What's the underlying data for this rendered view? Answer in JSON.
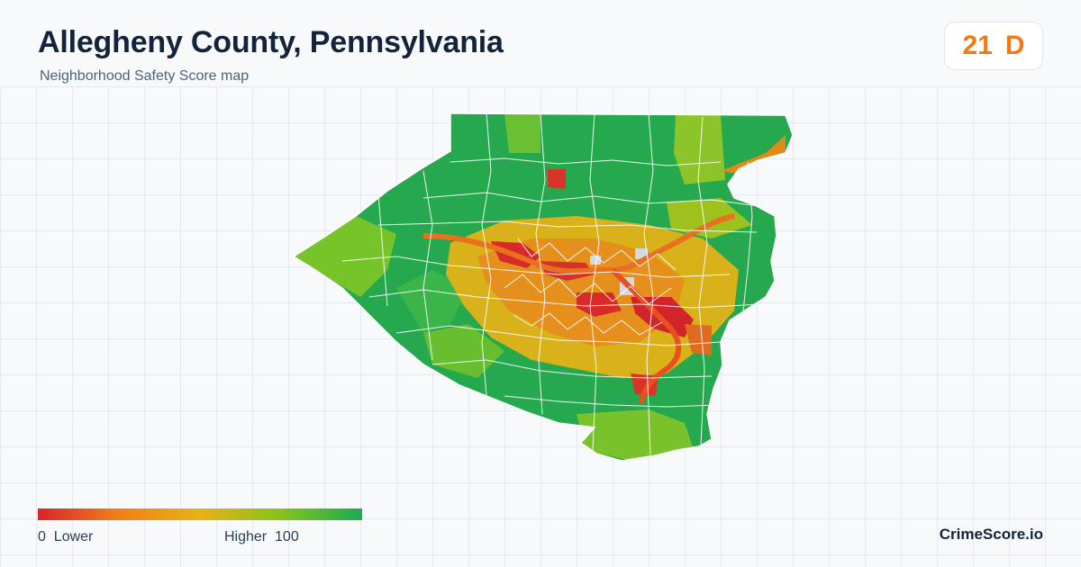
{
  "header": {
    "title": "Allegheny County, Pennsylvania",
    "subtitle": "Neighborhood Safety Score map"
  },
  "score_badge": {
    "score": "21",
    "grade": "D",
    "color": "#f07a1a"
  },
  "legend": {
    "min_value": "0",
    "min_label": "Lower",
    "max_label": "Higher",
    "max_value": "100",
    "gradient_colors": [
      "#d7262b",
      "#f0801a",
      "#e6b216",
      "#86c21f",
      "#1aab54"
    ]
  },
  "brand": "CrimeScore.io",
  "map": {
    "region": "Allegheny County",
    "safe_color": "#26a94e",
    "moderate_color": "#8cc42a",
    "caution_color": "#e5a817",
    "unsafe_color": "#d82a26",
    "no_data_color": "#d4d9df",
    "border_color": "#ffffff"
  }
}
